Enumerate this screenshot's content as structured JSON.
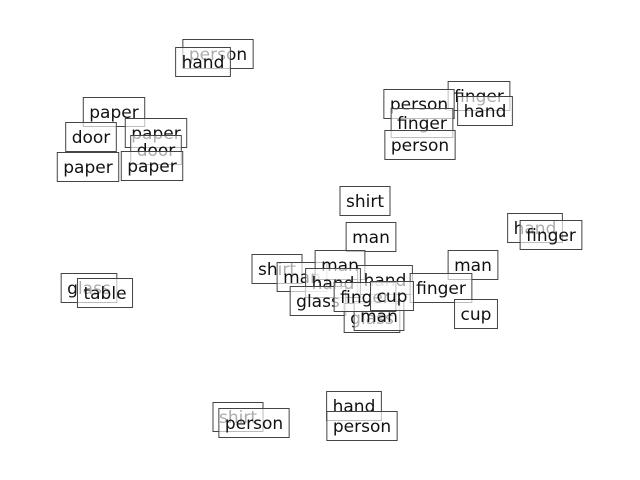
{
  "nodes": [
    {
      "label": "person"
    },
    {
      "label": "hand"
    },
    {
      "label": "finger"
    },
    {
      "label": "person"
    },
    {
      "label": "hand"
    },
    {
      "label": "finger"
    },
    {
      "label": "person"
    },
    {
      "label": "paper"
    },
    {
      "label": "door"
    },
    {
      "label": "paper"
    },
    {
      "label": "door"
    },
    {
      "label": "paper"
    },
    {
      "label": "paper"
    },
    {
      "label": "shirt"
    },
    {
      "label": "man"
    },
    {
      "label": "hand"
    },
    {
      "label": "finger"
    },
    {
      "label": "shirt"
    },
    {
      "label": "man"
    },
    {
      "label": "man"
    },
    {
      "label": "man"
    },
    {
      "label": "hand"
    },
    {
      "label": "hand"
    },
    {
      "label": "finger"
    },
    {
      "label": "glass"
    },
    {
      "label": "glass"
    },
    {
      "label": "man"
    },
    {
      "label": "finger"
    },
    {
      "label": "cup"
    },
    {
      "label": "cup"
    },
    {
      "label": "glass"
    },
    {
      "label": "table"
    },
    {
      "label": "shirt"
    },
    {
      "label": "person"
    },
    {
      "label": "hand"
    },
    {
      "label": "person"
    }
  ]
}
